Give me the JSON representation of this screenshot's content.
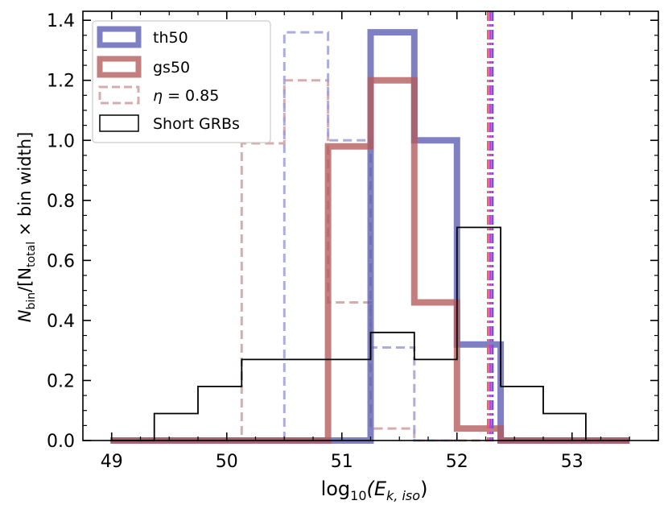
{
  "chart_data": {
    "type": "histogram-step",
    "xlabel_main": "log",
    "xlabel_sub": "10",
    "xlabel_paren": "(E",
    "xlabel_sub2": "k, iso",
    "xlabel_close": ")",
    "ylabel_parts": [
      "N",
      "bin",
      "/[N",
      "total",
      " × bin width]"
    ],
    "xlim": [
      48.75,
      53.75
    ],
    "ylim": [
      0.0,
      1.43
    ],
    "xticks": [
      49,
      50,
      51,
      52,
      53
    ],
    "xtick_labels": [
      "49",
      "50",
      "51",
      "52",
      "53"
    ],
    "yticks": [
      0.0,
      0.2,
      0.4,
      0.6,
      0.8,
      1.0,
      1.2,
      1.4
    ],
    "ytick_labels": [
      "0.0",
      "0.2",
      "0.4",
      "0.6",
      "0.8",
      "1.0",
      "1.2",
      "1.4"
    ],
    "legend_position": "upper-left",
    "series": [
      {
        "name": "th50",
        "style": "thick-solid",
        "color": "#5b5cb4",
        "alpha": 0.78,
        "edges": [
          48.99,
          50.88,
          51.25,
          51.63,
          52.0,
          52.38,
          53.5
        ],
        "values": [
          0.0,
          0.0,
          1.36,
          1.0,
          0.32,
          0.0
        ]
      },
      {
        "name": "gs50",
        "style": "thick-solid",
        "color": "#b45a5a",
        "alpha": 0.78,
        "edges": [
          48.99,
          50.88,
          51.25,
          51.63,
          52.0,
          52.38,
          53.5
        ],
        "values": [
          0.0,
          0.98,
          1.2,
          0.46,
          0.04,
          0.0
        ]
      },
      {
        "name": "η = 0.85",
        "legend_symbol": "η",
        "legend_rest": " = 0.85",
        "style": "dashed",
        "color": "#c99a9a",
        "alpha": 0.8,
        "edges": [
          48.99,
          50.13,
          50.5,
          50.88,
          51.25,
          51.63,
          52.0,
          52.38,
          53.5
        ],
        "values": [
          0.0,
          0.99,
          1.2,
          0.46,
          0.04,
          0.0,
          0.0,
          0.0
        ]
      },
      {
        "name": "",
        "style": "dashed",
        "color": "#9f9fd4",
        "alpha": 0.85,
        "edges": [
          50.5,
          50.88,
          51.25,
          51.63,
          52.0
        ],
        "values": [
          1.36,
          1.0,
          0.31,
          0.0
        ]
      },
      {
        "name": "Short GRBs",
        "style": "thin-solid",
        "color": "#000000",
        "edges": [
          48.99,
          49.37,
          49.75,
          50.13,
          50.5,
          50.88,
          51.25,
          51.63,
          52.0,
          52.38,
          52.75,
          53.12
        ],
        "values": [
          0.0,
          0.09,
          0.18,
          0.27,
          0.27,
          0.27,
          0.36,
          0.27,
          0.71,
          0.18,
          0.09
        ]
      }
    ],
    "vlines": [
      {
        "x": 52.27,
        "color": "#e0605a",
        "style": "dash-dot"
      },
      {
        "x": 52.29,
        "color": "#c03cdc",
        "style": "dash-dot"
      },
      {
        "x": 52.31,
        "color": "#6a5cd0",
        "style": "dash-dot"
      }
    ]
  }
}
